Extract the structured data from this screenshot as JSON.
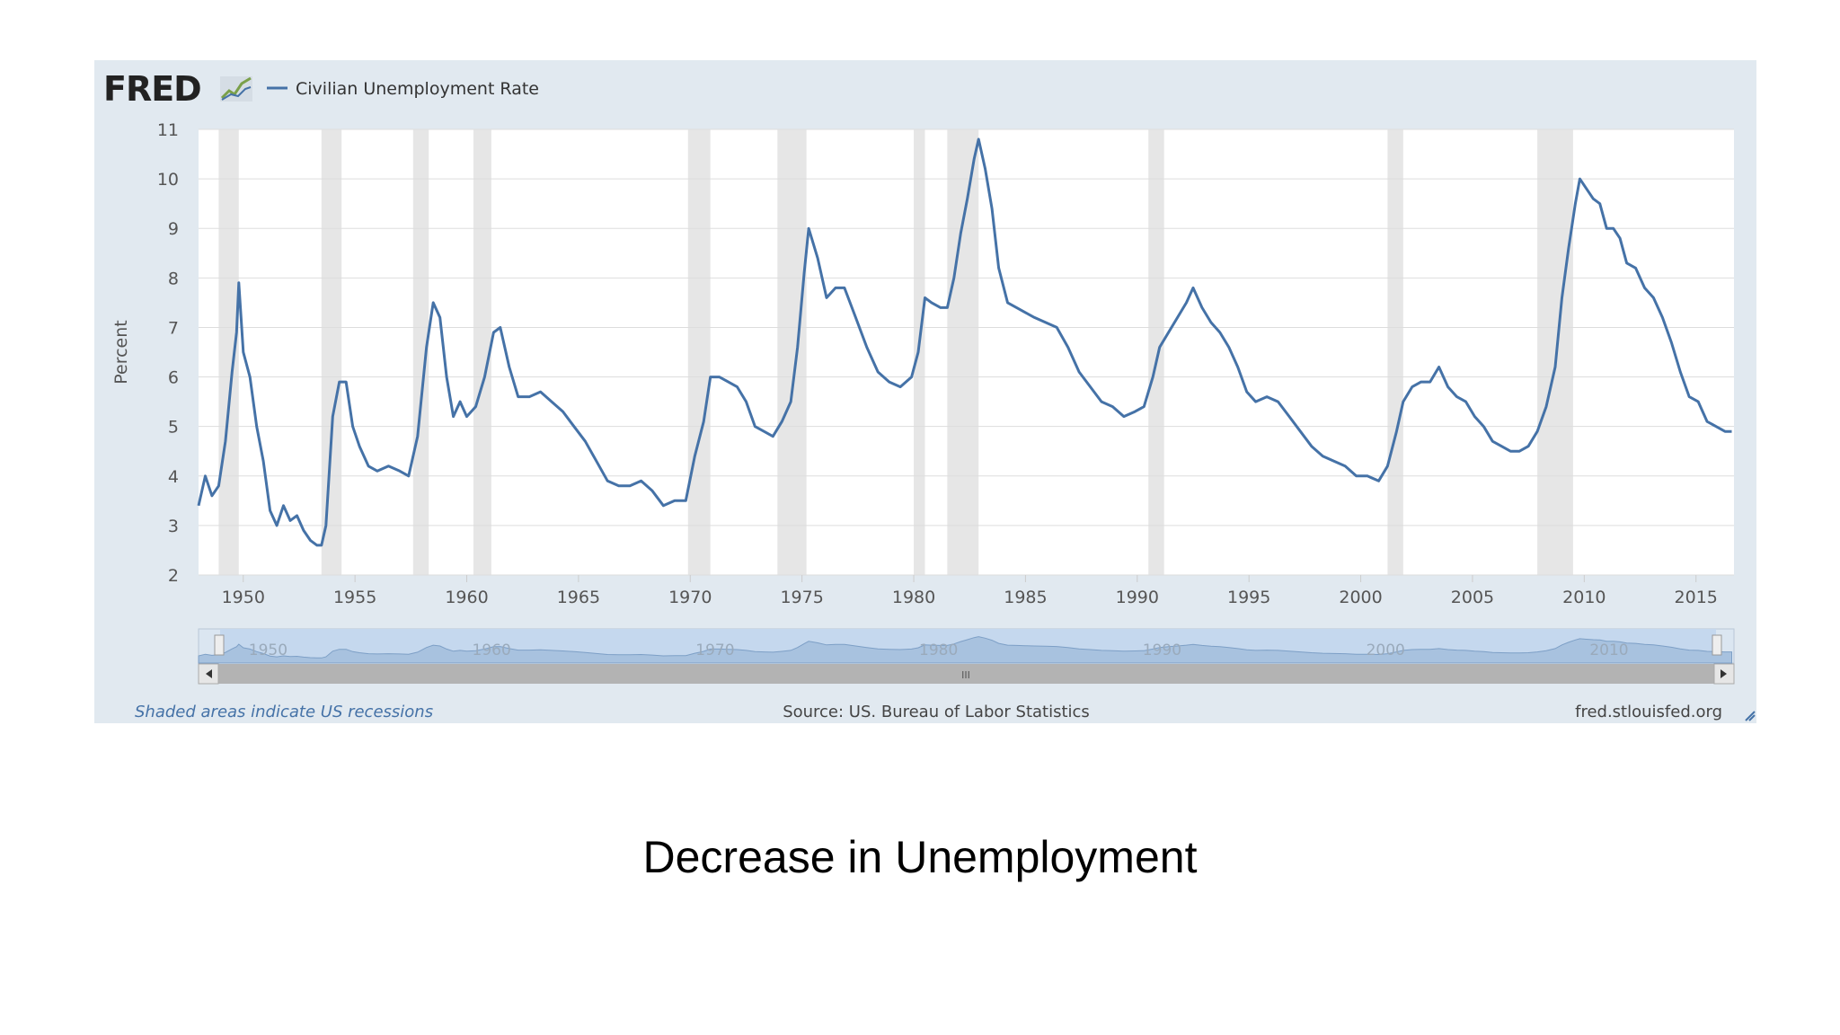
{
  "header": {
    "logo_text": "FRED",
    "legend_label": "Civilian Unemployment Rate"
  },
  "footer": {
    "note": "Shaded areas indicate US recessions",
    "source": "Source: US. Bureau of Labor Statistics",
    "site": "fred.stlouisfed.org"
  },
  "navigator": {
    "labels": [
      "1950",
      "1960",
      "1970",
      "1980",
      "1990",
      "2000",
      "2010"
    ],
    "scroll_grip": "III"
  },
  "caption": "Decrease in Unemployment",
  "colors": {
    "line": "#4572a7",
    "panel": "#e1e9f0",
    "recession": "#e6e6e6",
    "navigator_fill": "#a8c2df",
    "footer_note": "#4572a7"
  },
  "chart_data": {
    "type": "line",
    "title": "",
    "xlabel": "",
    "ylabel": "Percent",
    "xlim": [
      1948.0,
      2016.7
    ],
    "ylim": [
      2,
      11
    ],
    "y_ticks": [
      2,
      3,
      4,
      5,
      6,
      7,
      8,
      9,
      10,
      11
    ],
    "x_ticks": [
      1950,
      1955,
      1960,
      1965,
      1970,
      1975,
      1980,
      1985,
      1990,
      1995,
      2000,
      2005,
      2010,
      2015
    ],
    "grid": true,
    "legend": "top-left",
    "recessions": [
      [
        1948.9,
        1949.8
      ],
      [
        1953.5,
        1954.4
      ],
      [
        1957.6,
        1958.3
      ],
      [
        1960.3,
        1961.1
      ],
      [
        1969.9,
        1970.9
      ],
      [
        1973.9,
        1975.2
      ],
      [
        1980.0,
        1980.5
      ],
      [
        1981.5,
        1982.9
      ],
      [
        1990.5,
        1991.2
      ],
      [
        2001.2,
        2001.9
      ],
      [
        2007.9,
        2009.5
      ]
    ],
    "series": [
      {
        "name": "Civilian Unemployment Rate",
        "x": [
          1948.0,
          1948.3,
          1948.6,
          1948.9,
          1949.2,
          1949.5,
          1949.7,
          1949.8,
          1950.0,
          1950.3,
          1950.6,
          1950.9,
          1951.2,
          1951.5,
          1951.8,
          1952.1,
          1952.4,
          1952.7,
          1953.0,
          1953.3,
          1953.5,
          1953.7,
          1954.0,
          1954.3,
          1954.6,
          1954.9,
          1955.2,
          1955.6,
          1956.0,
          1956.5,
          1957.0,
          1957.4,
          1957.8,
          1958.2,
          1958.5,
          1958.8,
          1959.1,
          1959.4,
          1959.7,
          1960.0,
          1960.4,
          1960.8,
          1961.2,
          1961.5,
          1961.9,
          1962.3,
          1962.8,
          1963.3,
          1963.8,
          1964.3,
          1964.8,
          1965.3,
          1965.8,
          1966.3,
          1966.8,
          1967.3,
          1967.8,
          1968.3,
          1968.8,
          1969.3,
          1969.8,
          1970.2,
          1970.6,
          1970.9,
          1971.3,
          1971.7,
          1972.1,
          1972.5,
          1972.9,
          1973.3,
          1973.7,
          1974.1,
          1974.5,
          1974.8,
          1975.1,
          1975.3,
          1975.7,
          1976.1,
          1976.5,
          1976.9,
          1977.4,
          1977.9,
          1978.4,
          1978.9,
          1979.4,
          1979.9,
          1980.2,
          1980.5,
          1980.8,
          1981.2,
          1981.5,
          1981.8,
          1982.1,
          1982.4,
          1982.7,
          1982.9,
          1983.2,
          1983.5,
          1983.8,
          1984.2,
          1984.6,
          1985.0,
          1985.4,
          1985.9,
          1986.4,
          1986.9,
          1987.4,
          1987.9,
          1988.4,
          1988.9,
          1989.4,
          1989.9,
          1990.3,
          1990.7,
          1991.0,
          1991.4,
          1991.8,
          1992.2,
          1992.5,
          1992.9,
          1993.3,
          1993.7,
          1994.1,
          1994.5,
          1994.9,
          1995.3,
          1995.8,
          1996.3,
          1996.8,
          1997.3,
          1997.8,
          1998.3,
          1998.8,
          1999.3,
          1999.8,
          2000.3,
          2000.8,
          2001.2,
          2001.6,
          2001.9,
          2002.3,
          2002.7,
          2003.1,
          2003.5,
          2003.9,
          2004.3,
          2004.7,
          2005.1,
          2005.5,
          2005.9,
          2006.3,
          2006.7,
          2007.1,
          2007.5,
          2007.9,
          2008.3,
          2008.7,
          2009.0,
          2009.3,
          2009.6,
          2009.8,
          2010.1,
          2010.4,
          2010.7,
          2011.0,
          2011.3,
          2011.6,
          2011.9,
          2012.3,
          2012.7,
          2013.1,
          2013.5,
          2013.9,
          2014.3,
          2014.7,
          2015.1,
          2015.5,
          2015.9,
          2016.3,
          2016.6
        ],
        "values": [
          3.4,
          4.0,
          3.6,
          3.8,
          4.7,
          6.1,
          6.9,
          7.9,
          6.5,
          6.0,
          5.0,
          4.3,
          3.3,
          3.0,
          3.4,
          3.1,
          3.2,
          2.9,
          2.7,
          2.6,
          2.6,
          3.0,
          5.2,
          5.9,
          5.9,
          5.0,
          4.6,
          4.2,
          4.1,
          4.2,
          4.1,
          4.0,
          4.8,
          6.6,
          7.5,
          7.2,
          6.0,
          5.2,
          5.5,
          5.2,
          5.4,
          6.0,
          6.9,
          7.0,
          6.2,
          5.6,
          5.6,
          5.7,
          5.5,
          5.3,
          5.0,
          4.7,
          4.3,
          3.9,
          3.8,
          3.8,
          3.9,
          3.7,
          3.4,
          3.5,
          3.5,
          4.4,
          5.1,
          6.0,
          6.0,
          5.9,
          5.8,
          5.5,
          5.0,
          4.9,
          4.8,
          5.1,
          5.5,
          6.6,
          8.1,
          9.0,
          8.4,
          7.6,
          7.8,
          7.8,
          7.2,
          6.6,
          6.1,
          5.9,
          5.8,
          6.0,
          6.5,
          7.6,
          7.5,
          7.4,
          7.4,
          8.0,
          8.9,
          9.6,
          10.4,
          10.8,
          10.2,
          9.4,
          8.2,
          7.5,
          7.4,
          7.3,
          7.2,
          7.1,
          7.0,
          6.6,
          6.1,
          5.8,
          5.5,
          5.4,
          5.2,
          5.3,
          5.4,
          6.0,
          6.6,
          6.9,
          7.2,
          7.5,
          7.8,
          7.4,
          7.1,
          6.9,
          6.6,
          6.2,
          5.7,
          5.5,
          5.6,
          5.5,
          5.2,
          4.9,
          4.6,
          4.4,
          4.3,
          4.2,
          4.0,
          4.0,
          3.9,
          4.2,
          4.9,
          5.5,
          5.8,
          5.9,
          5.9,
          6.2,
          5.8,
          5.6,
          5.5,
          5.2,
          5.0,
          4.7,
          4.6,
          4.5,
          4.5,
          4.6,
          4.9,
          5.4,
          6.2,
          7.6,
          8.6,
          9.5,
          10.0,
          9.8,
          9.6,
          9.5,
          9.0,
          9.0,
          8.8,
          8.3,
          8.2,
          7.8,
          7.6,
          7.2,
          6.7,
          6.1,
          5.6,
          5.5,
          5.1,
          5.0,
          4.9,
          4.9
        ]
      }
    ]
  }
}
